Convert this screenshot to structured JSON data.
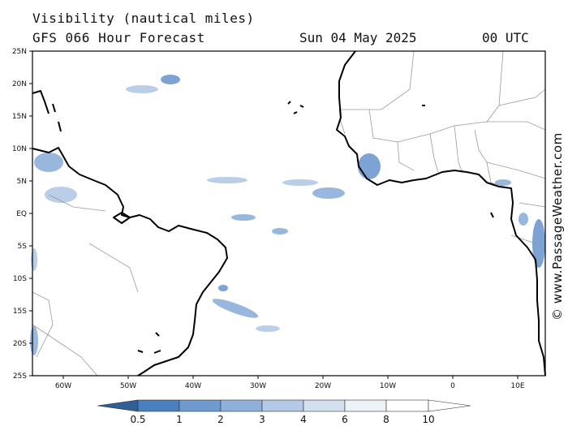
{
  "header": {
    "title": "Visibility (nautical miles)",
    "subtitle": "GFS 066 Hour Forecast",
    "date": "Sun 04 May 2025",
    "time": "00 UTC"
  },
  "watermark": "© www.PassageWeather.com",
  "map": {
    "lat_labels": [
      "25N",
      "20N",
      "15N",
      "10N",
      "5N",
      "EQ",
      "5S",
      "10S",
      "15S",
      "20S",
      "25S"
    ],
    "lon_labels": [
      "60W",
      "50W",
      "40W",
      "30W",
      "20W",
      "10W",
      "0",
      "10E"
    ]
  },
  "legend": {
    "labels": [
      "0.5",
      "1",
      "2",
      "3",
      "4",
      "6",
      "8",
      "10"
    ],
    "colors": [
      "#3a6ea5",
      "#4a7fc0",
      "#6f9ad0",
      "#8fb0da",
      "#b3c9e6",
      "#d3e0f0",
      "#edf2f9",
      "#ffffff"
    ]
  }
}
